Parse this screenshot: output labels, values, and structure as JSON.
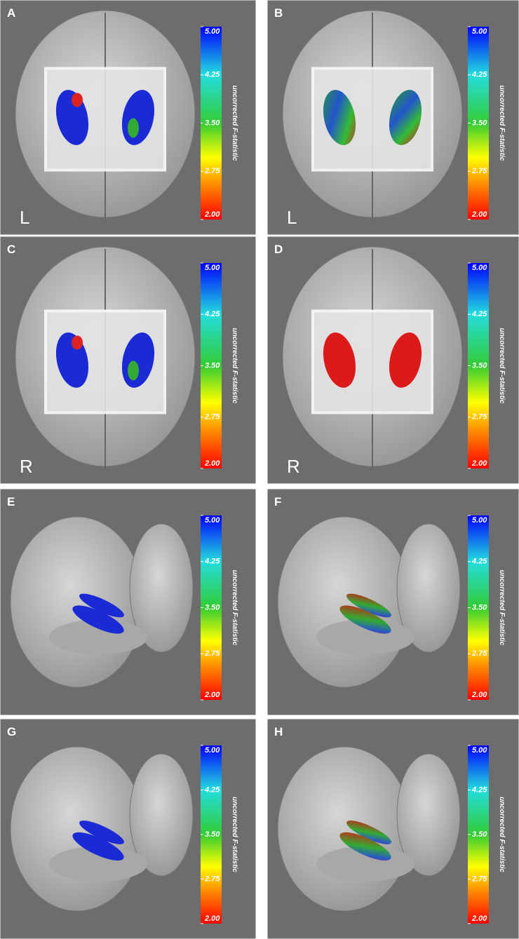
{
  "panels": [
    {
      "letter": "A",
      "side_label": "L",
      "colorbar": {
        "label": "uncorrected F-statistic",
        "range": [
          2,
          5
        ],
        "ticks": [
          {
            "value": 5,
            "label": "5.00"
          },
          {
            "value": 4.25,
            "label": "4.25"
          },
          {
            "value": 3.5,
            "label": "3.50"
          },
          {
            "value": 2.75,
            "label": "2.75"
          },
          {
            "value": 2,
            "label": "2.00"
          }
        ]
      }
    },
    {
      "letter": "B",
      "side_label": "L",
      "colorbar": {
        "label": "uncorrected F-statistic",
        "range": [
          2,
          5
        ],
        "ticks": [
          {
            "value": 5,
            "label": "5.00"
          },
          {
            "value": 4.25,
            "label": "4.25"
          },
          {
            "value": 3.5,
            "label": "3.50"
          },
          {
            "value": 2.75,
            "label": "2.75"
          },
          {
            "value": 2,
            "label": "2.00"
          }
        ]
      }
    },
    {
      "letter": "C",
      "side_label": "R",
      "colorbar": {
        "label": "uncorrected F-statistic",
        "range": [
          2,
          5
        ],
        "ticks": [
          {
            "value": 5,
            "label": "5.00"
          },
          {
            "value": 4.25,
            "label": "4.25"
          },
          {
            "value": 3.5,
            "label": "3.50"
          },
          {
            "value": 2.75,
            "label": "2.75"
          },
          {
            "value": 2,
            "label": "2.00"
          }
        ]
      }
    },
    {
      "letter": "D",
      "side_label": "R",
      "colorbar": {
        "label": "uncorrected F-statistic",
        "range": [
          2,
          5
        ],
        "ticks": [
          {
            "value": 5,
            "label": "5.00"
          },
          {
            "value": 4.25,
            "label": "4.25"
          },
          {
            "value": 3.5,
            "label": "3.50"
          },
          {
            "value": 2.75,
            "label": "2.75"
          },
          {
            "value": 2,
            "label": "2.00"
          }
        ]
      }
    },
    {
      "letter": "E",
      "colorbar": {
        "label": "uncorrected F-statistic",
        "range": [
          2,
          5
        ],
        "ticks": [
          {
            "value": 5,
            "label": "5.00"
          },
          {
            "value": 4.25,
            "label": "4.25"
          },
          {
            "value": 3.5,
            "label": "3.50"
          },
          {
            "value": 2.75,
            "label": "2.75"
          },
          {
            "value": 2,
            "label": "2.00"
          }
        ]
      }
    },
    {
      "letter": "F",
      "colorbar": {
        "label": "uncorrected F-statistic",
        "range": [
          2,
          5
        ],
        "ticks": [
          {
            "value": 5,
            "label": "5.00"
          },
          {
            "value": 4.25,
            "label": "4.25"
          },
          {
            "value": 3.5,
            "label": "3.50"
          },
          {
            "value": 2.75,
            "label": "2.75"
          },
          {
            "value": 2,
            "label": "2.00"
          }
        ]
      }
    },
    {
      "letter": "G",
      "colorbar": {
        "label": "uncorrected F-statistic",
        "range": [
          2,
          5
        ],
        "ticks": [
          {
            "value": 5,
            "label": "5.00"
          },
          {
            "value": 4.25,
            "label": "4.25"
          },
          {
            "value": 3.5,
            "label": "3.50"
          },
          {
            "value": 2.75,
            "label": "2.75"
          },
          {
            "value": 2,
            "label": "2.00"
          }
        ]
      }
    },
    {
      "letter": "H",
      "colorbar": {
        "label": "uncorrected F-statistic",
        "range": [
          2,
          5
        ],
        "ticks": [
          {
            "value": 5,
            "label": "5.00"
          },
          {
            "value": 4.25,
            "label": "4.25"
          },
          {
            "value": 3.5,
            "label": "3.50"
          },
          {
            "value": 2.75,
            "label": "2.75"
          },
          {
            "value": 2,
            "label": "2.00"
          }
        ]
      }
    }
  ]
}
